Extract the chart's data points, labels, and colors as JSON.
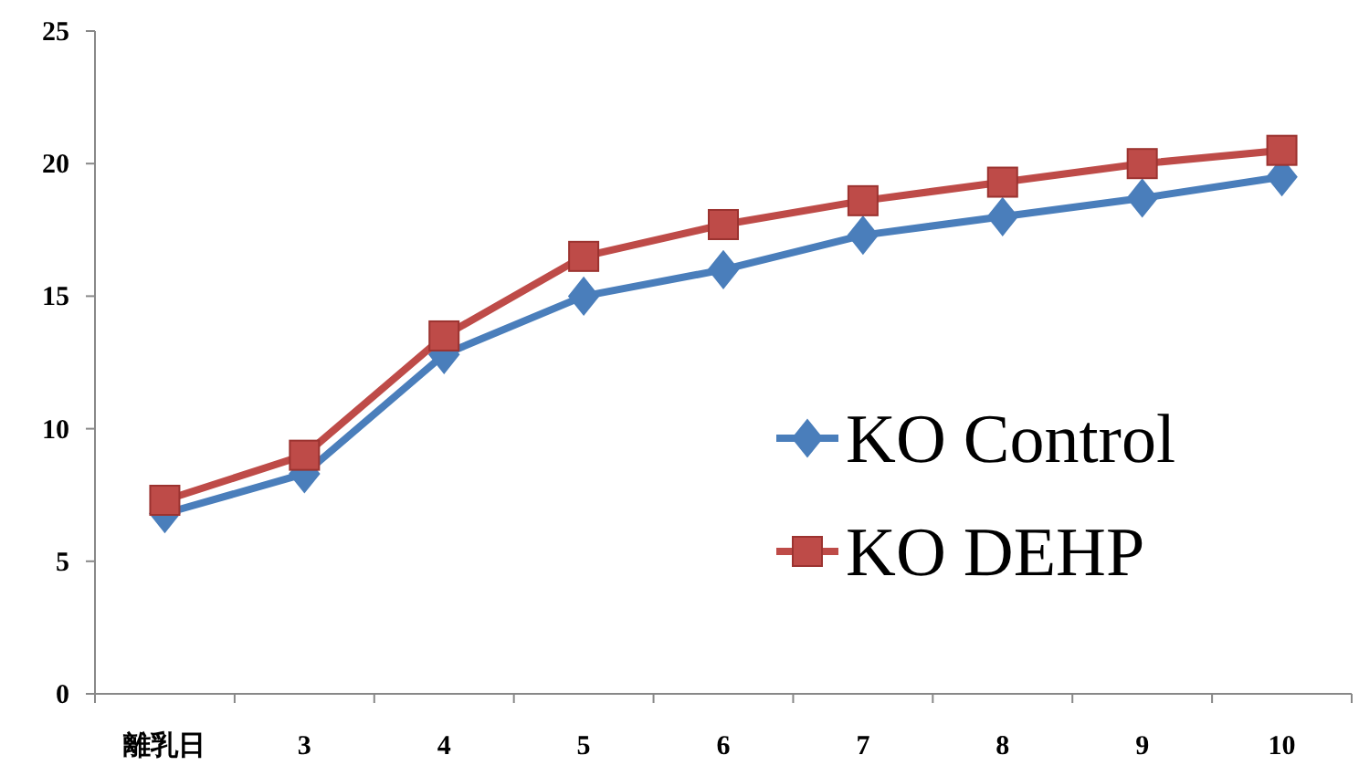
{
  "chart_data": {
    "type": "line",
    "categories": [
      "離乳日",
      "3",
      "4",
      "5",
      "6",
      "7",
      "8",
      "9",
      "10"
    ],
    "series": [
      {
        "name": "KO Control",
        "color": "#4a7ebb",
        "marker": "diamond",
        "values": [
          6.8,
          8.3,
          12.8,
          15.0,
          16.0,
          17.3,
          18.0,
          18.7,
          19.5
        ]
      },
      {
        "name": "KO DEHP",
        "color": "#be4b48",
        "marker": "square",
        "values": [
          7.3,
          9.0,
          13.5,
          16.5,
          17.7,
          18.6,
          19.3,
          20.0,
          20.5
        ]
      }
    ],
    "ylim": [
      0,
      25
    ],
    "yticks": [
      0,
      5,
      10,
      15,
      20,
      25
    ],
    "grid": false,
    "legend": "right"
  }
}
